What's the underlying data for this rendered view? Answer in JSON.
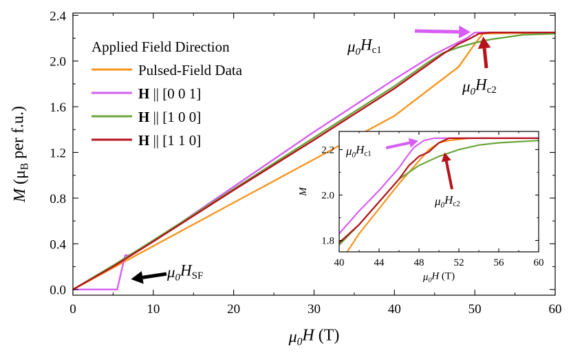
{
  "chart_data": [
    {
      "type": "line",
      "title": "",
      "xlabel": {
        "pre": "μ",
        "sub": "0",
        "post": "H (T)"
      },
      "ylabel": {
        "pre": "M (μ",
        "sub": "B",
        "post": " per f.u.)"
      },
      "xlim": [
        0,
        60
      ],
      "ylim": [
        -0.05,
        2.42
      ],
      "xticks": [
        "0",
        "10",
        "20",
        "30",
        "40",
        "50",
        "60"
      ],
      "yticks": [
        "0.0",
        "0.4",
        "0.8",
        "1.2",
        "1.6",
        "2.0",
        "2.4"
      ],
      "grid": false,
      "legend": {
        "title": "Applied Field Direction",
        "placement": "top-left",
        "entries": [
          {
            "label": "Pulsed-Field Data",
            "color": "#f7941d"
          },
          {
            "label_bold": "H",
            "label": " || [0 0 1]",
            "color": "#d65ef2"
          },
          {
            "label_bold": "H",
            "label": " || [1 0 0]",
            "color": "#6aa53a"
          },
          {
            "label_bold": "H",
            "label": " || [1 1 0]",
            "color": "#b5121b"
          }
        ]
      },
      "series": [
        {
          "color": "#f7941d",
          "x": [
            0,
            5,
            10,
            20,
            30,
            40,
            48,
            50,
            51,
            60
          ],
          "y": [
            0.0,
            0.19,
            0.38,
            0.76,
            1.14,
            1.52,
            1.95,
            2.15,
            2.24,
            2.25
          ]
        },
        {
          "color": "#d65ef2",
          "x": [
            0,
            2,
            4,
            5.5,
            5.9,
            6.5,
            7,
            10,
            20,
            30,
            40,
            45,
            47,
            49,
            50,
            60
          ],
          "y": [
            0.0,
            0.0,
            0.0,
            0.0,
            0.12,
            0.3,
            0.3,
            0.42,
            0.9,
            1.38,
            1.84,
            2.06,
            2.13,
            2.2,
            2.25,
            2.25
          ]
        },
        {
          "color": "#6aa53a",
          "x": [
            0,
            5,
            10,
            20,
            30,
            40,
            44,
            46,
            48,
            50,
            52,
            54,
            56,
            60
          ],
          "y": [
            0.0,
            0.21,
            0.43,
            0.88,
            1.33,
            1.78,
            1.98,
            2.07,
            2.12,
            2.16,
            2.19,
            2.21,
            2.23,
            2.24
          ]
        },
        {
          "color": "#b5121b",
          "x": [
            0,
            5,
            10,
            20,
            30,
            40,
            44,
            46,
            48,
            49.5,
            50.5,
            52,
            56,
            60
          ],
          "y": [
            0.0,
            0.2,
            0.42,
            0.87,
            1.31,
            1.76,
            1.96,
            2.06,
            2.15,
            2.2,
            2.24,
            2.25,
            2.25,
            2.25
          ]
        }
      ],
      "annotations": [
        {
          "pre": "μ",
          "sub0": "0",
          "mid": "H",
          "sub": "c1",
          "arrow_color": "#d65ef2",
          "x": 50,
          "y": 2.25
        },
        {
          "pre": "μ",
          "sub0": "0",
          "mid": "H",
          "sub": "c2",
          "arrow_color": "#b5121b",
          "x": 51,
          "y": 2.25
        },
        {
          "pre": "μ",
          "sub0": "0",
          "mid": "H",
          "sub": "SF",
          "arrow_color": "#000000",
          "x": 6.2,
          "y": 0.15
        }
      ]
    },
    {
      "type": "line",
      "title": "",
      "xlabel": {
        "pre": "μ",
        "sub": "0",
        "post": "H (T)"
      },
      "ylabel": {
        "pre": "M",
        "sub": "",
        "post": ""
      },
      "xlim": [
        40,
        60
      ],
      "ylim": [
        1.75,
        2.28
      ],
      "xticks": [
        "40",
        "44",
        "48",
        "52",
        "56",
        "60"
      ],
      "yticks": [
        "1.8",
        "2.0",
        "2.2"
      ],
      "grid": false,
      "series": [
        {
          "color": "#f7941d",
          "x": [
            40.8,
            42,
            44,
            46,
            48,
            49,
            50,
            51,
            53,
            60
          ],
          "y": [
            1.75,
            1.83,
            1.94,
            2.05,
            2.15,
            2.2,
            2.23,
            2.24,
            2.25,
            2.25
          ]
        },
        {
          "color": "#d65ef2",
          "x": [
            40,
            41,
            42,
            44,
            46,
            46.8,
            47.5,
            48.5,
            49.5,
            52,
            60
          ],
          "y": [
            1.83,
            1.88,
            1.93,
            2.02,
            2.12,
            2.17,
            2.21,
            2.24,
            2.25,
            2.25,
            2.25
          ]
        },
        {
          "color": "#6aa53a",
          "x": [
            40,
            42,
            44,
            46,
            48,
            50,
            52,
            54,
            56,
            58,
            60
          ],
          "y": [
            1.78,
            1.87,
            1.97,
            2.07,
            2.13,
            2.17,
            2.2,
            2.22,
            2.23,
            2.235,
            2.24
          ]
        },
        {
          "color": "#b5121b",
          "x": [
            40,
            42,
            44,
            46,
            47,
            48,
            49,
            50,
            51,
            53,
            55,
            56.5,
            57.5,
            60
          ],
          "y": [
            1.79,
            1.87,
            1.97,
            2.07,
            2.13,
            2.17,
            2.19,
            2.23,
            2.25,
            2.25,
            2.25,
            2.25,
            2.25,
            2.25
          ]
        }
      ],
      "annotations": [
        {
          "pre": "μ",
          "sub0": "0",
          "mid": "H",
          "sub": "c1",
          "arrow_color": "#d65ef2",
          "x": 48,
          "y": 2.24
        },
        {
          "pre": "μ",
          "sub0": "0",
          "mid": "H",
          "sub": "c2",
          "arrow_color": "#b5121b",
          "x": 50.5,
          "y": 2.2
        }
      ]
    }
  ]
}
